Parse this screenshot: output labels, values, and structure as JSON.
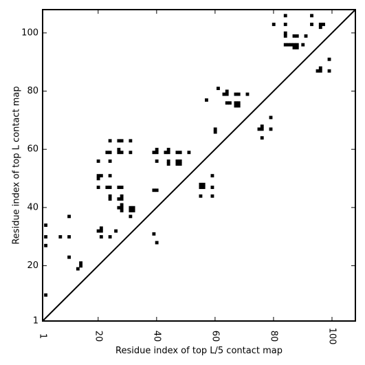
{
  "chart_data": {
    "type": "heatmap",
    "title": "",
    "xlabel": "Residue index of top L/5 contact map",
    "ylabel": "Residue index of top L contact map",
    "xlim": [
      1,
      108
    ],
    "ylim": [
      1,
      108
    ],
    "xticks": [
      1,
      20,
      40,
      60,
      80,
      100
    ],
    "yticks": [
      1,
      20,
      40,
      60,
      80,
      100
    ],
    "diagonal": true,
    "grid": false,
    "cell_color": "#000000",
    "lower_cells": [
      [
        2,
        10
      ],
      [
        2,
        27
      ],
      [
        2,
        30
      ],
      [
        2,
        34
      ],
      [
        7,
        30
      ],
      [
        10,
        23
      ],
      [
        10,
        30
      ],
      [
        10,
        37
      ],
      [
        13,
        19
      ],
      [
        14,
        20
      ],
      [
        14,
        21
      ],
      [
        20,
        32
      ],
      [
        21,
        32
      ],
      [
        21,
        33
      ],
      [
        21,
        30
      ],
      [
        24,
        30
      ],
      [
        26,
        32
      ],
      [
        31,
        37
      ],
      [
        31,
        39
      ],
      [
        32,
        39
      ],
      [
        31,
        40
      ],
      [
        32,
        40
      ],
      [
        39,
        31
      ],
      [
        40,
        28
      ],
      [
        55,
        44
      ],
      [
        59,
        44
      ]
    ],
    "upper_cells": [
      [
        20,
        47
      ],
      [
        20,
        50
      ],
      [
        20,
        51
      ],
      [
        20,
        56
      ],
      [
        21,
        51
      ],
      [
        23,
        47
      ],
      [
        24,
        47
      ],
      [
        24,
        43
      ],
      [
        24,
        44
      ],
      [
        24,
        51
      ],
      [
        24,
        56
      ],
      [
        23,
        59
      ],
      [
        24,
        59
      ],
      [
        24,
        63
      ],
      [
        27,
        40
      ],
      [
        27,
        43
      ],
      [
        27,
        47
      ],
      [
        27,
        59
      ],
      [
        27,
        60
      ],
      [
        27,
        63
      ],
      [
        28,
        39
      ],
      [
        28,
        40
      ],
      [
        28,
        41
      ],
      [
        28,
        43
      ],
      [
        28,
        44
      ],
      [
        28,
        47
      ],
      [
        28,
        59
      ],
      [
        28,
        63
      ],
      [
        31,
        59
      ],
      [
        31,
        63
      ],
      [
        39,
        46
      ],
      [
        40,
        46
      ],
      [
        39,
        59
      ],
      [
        40,
        59
      ],
      [
        40,
        60
      ],
      [
        40,
        56
      ],
      [
        43,
        59
      ],
      [
        44,
        59
      ],
      [
        44,
        60
      ],
      [
        44,
        55
      ],
      [
        44,
        56
      ],
      [
        47,
        55
      ],
      [
        48,
        55
      ],
      [
        47,
        56
      ],
      [
        48,
        56
      ],
      [
        47,
        59
      ],
      [
        48,
        59
      ],
      [
        51,
        59
      ],
      [
        55,
        47
      ],
      [
        56,
        47
      ],
      [
        55,
        48
      ],
      [
        56,
        48
      ],
      [
        57,
        77
      ],
      [
        59,
        47
      ],
      [
        59,
        51
      ],
      [
        60,
        66
      ],
      [
        60,
        67
      ],
      [
        61,
        81
      ],
      [
        63,
        79
      ],
      [
        64,
        79
      ],
      [
        64,
        80
      ],
      [
        64,
        76
      ],
      [
        65,
        76
      ],
      [
        67,
        75
      ],
      [
        68,
        75
      ],
      [
        67,
        76
      ],
      [
        68,
        76
      ],
      [
        67,
        79
      ],
      [
        68,
        79
      ],
      [
        71,
        79
      ],
      [
        75,
        67
      ],
      [
        76,
        67
      ],
      [
        76,
        68
      ],
      [
        76,
        64
      ],
      [
        79,
        67
      ],
      [
        79,
        71
      ],
      [
        80,
        103
      ],
      [
        84,
        96
      ],
      [
        85,
        96
      ],
      [
        86,
        96
      ],
      [
        87,
        96
      ],
      [
        84,
        99
      ],
      [
        84,
        100
      ],
      [
        84,
        103
      ],
      [
        84,
        106
      ],
      [
        87,
        95
      ],
      [
        88,
        95
      ],
      [
        87,
        99
      ],
      [
        88,
        99
      ],
      [
        88,
        96
      ],
      [
        90,
        96
      ],
      [
        91,
        99
      ],
      [
        93,
        103
      ],
      [
        93,
        106
      ],
      [
        95,
        87
      ],
      [
        96,
        87
      ],
      [
        96,
        88
      ],
      [
        96,
        102
      ],
      [
        96,
        103
      ],
      [
        97,
        103
      ],
      [
        99,
        87
      ],
      [
        99,
        91
      ]
    ]
  }
}
